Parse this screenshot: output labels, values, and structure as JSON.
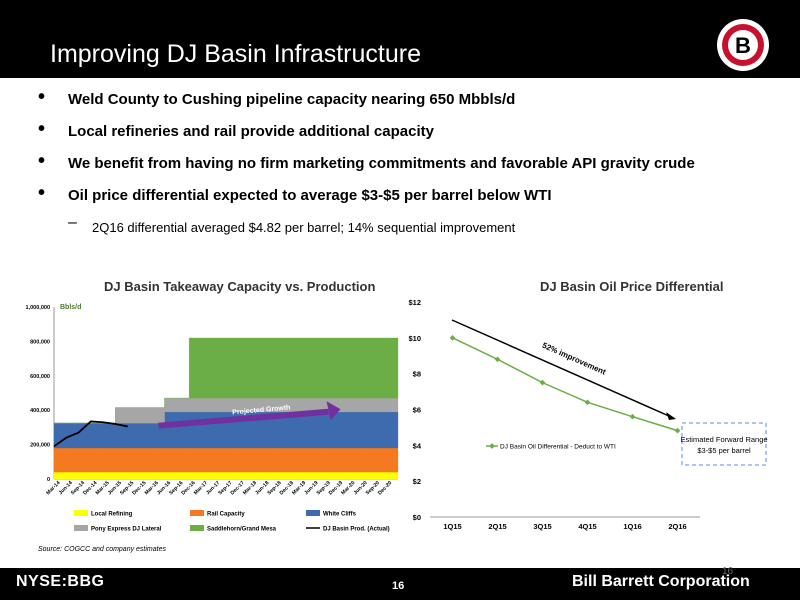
{
  "header": {
    "title": "Improving DJ Basin Infrastructure",
    "logo_letter": "B"
  },
  "bullets": [
    "Weld County to Cushing pipeline capacity nearing 650 Mbbls/d",
    "Local refineries and rail provide additional capacity",
    "We benefit from having no firm marketing commitments and favorable API gravity crude",
    "Oil price differential expected to average $3-$5 per barrel below WTI"
  ],
  "sub_bullet": "2Q16 differential averaged $4.82 per barrel; 14% sequential improvement",
  "source": "Source:  COGCC and company estimates",
  "footer": {
    "ticker": "NYSE:BBG",
    "page": "16",
    "page_faint": "16",
    "company": "Bill Barrett Corporation"
  },
  "chart_data": [
    {
      "type": "area",
      "title": "DJ Basin Takeaway Capacity vs. Production",
      "unit_label": "Bbls/d",
      "ylim": [
        0,
        1000000
      ],
      "yticks": [
        "0",
        "200,000",
        "400,000",
        "600,000",
        "800,000",
        "1,000,000"
      ],
      "categories": [
        "Mar-14",
        "Jun-14",
        "Sep-14",
        "Dec-14",
        "Mar-15",
        "Jun-15",
        "Sep-15",
        "Dec-15",
        "Mar-16",
        "Jun-16",
        "Sep-16",
        "Dec-16",
        "Mar-17",
        "Jun-17",
        "Sep-17",
        "Dec-17",
        "Mar-18",
        "Jun-18",
        "Sep-18",
        "Dec-18",
        "Mar-19",
        "Jun-19",
        "Sep-19",
        "Dec-19",
        "Mar-20",
        "Jun-20",
        "Sep-20",
        "Dec-20"
      ],
      "series": [
        {
          "name": "Local Refining",
          "color": "#FFFF00",
          "values": [
            40000,
            40000,
            40000,
            40000,
            40000,
            40000,
            40000,
            40000,
            40000,
            40000,
            40000,
            40000,
            40000,
            40000,
            40000,
            40000,
            40000,
            40000,
            40000,
            40000,
            40000,
            40000,
            40000,
            40000,
            40000,
            40000,
            40000,
            40000
          ]
        },
        {
          "name": "Rail Capacity",
          "color": "#F47920",
          "values": [
            140000,
            140000,
            140000,
            140000,
            140000,
            140000,
            140000,
            140000,
            140000,
            140000,
            140000,
            140000,
            140000,
            140000,
            140000,
            140000,
            140000,
            140000,
            140000,
            140000,
            140000,
            140000,
            140000,
            140000,
            140000,
            140000,
            140000,
            140000
          ]
        },
        {
          "name": "White Cliffs",
          "color": "#3E6BAE",
          "values": [
            145000,
            145000,
            145000,
            145000,
            145000,
            145000,
            145000,
            145000,
            145000,
            210000,
            210000,
            210000,
            210000,
            210000,
            210000,
            210000,
            210000,
            210000,
            210000,
            210000,
            210000,
            210000,
            210000,
            210000,
            210000,
            210000,
            210000,
            210000
          ]
        },
        {
          "name": "Pony Express DJ Lateral",
          "color": "#A6A6A6",
          "values": [
            0,
            0,
            0,
            0,
            0,
            90000,
            90000,
            90000,
            90000,
            80000,
            80000,
            80000,
            80000,
            80000,
            80000,
            80000,
            80000,
            80000,
            80000,
            80000,
            80000,
            80000,
            80000,
            80000,
            80000,
            80000,
            80000,
            80000
          ]
        },
        {
          "name": "Saddlehorn/Grand Mesa",
          "color": "#6BAE45",
          "values": [
            0,
            0,
            0,
            0,
            0,
            0,
            0,
            0,
            0,
            0,
            0,
            350000,
            350000,
            350000,
            350000,
            350000,
            350000,
            350000,
            350000,
            350000,
            350000,
            350000,
            350000,
            350000,
            350000,
            350000,
            350000,
            350000
          ]
        }
      ],
      "line_series": {
        "name": "DJ Basin Prod. (Actual)",
        "color": "#000000",
        "values": [
          190000,
          240000,
          270000,
          335000,
          330000,
          320000,
          305000
        ]
      },
      "annotation": "Projected Growth",
      "annotation_color": "#7030A0"
    },
    {
      "type": "line",
      "title": "DJ Basin Oil Price Differential",
      "categories": [
        "1Q15",
        "2Q15",
        "3Q15",
        "4Q15",
        "1Q16",
        "2Q16"
      ],
      "ylim": [
        0,
        12
      ],
      "yticks": [
        "$0",
        "$2",
        "$4",
        "$6",
        "$8",
        "$10",
        "$12"
      ],
      "series": [
        {
          "name": "DJ Basin Oil Differential - Deduct to WTI",
          "color": "#6BAE45",
          "values": [
            10.0,
            8.8,
            7.5,
            6.4,
            5.6,
            4.82
          ]
        }
      ],
      "annotation": "52% improvement",
      "forward_range_label": "Estimated Forward Range $3-$5 per barrel",
      "forward_range": [
        3,
        5
      ]
    }
  ]
}
